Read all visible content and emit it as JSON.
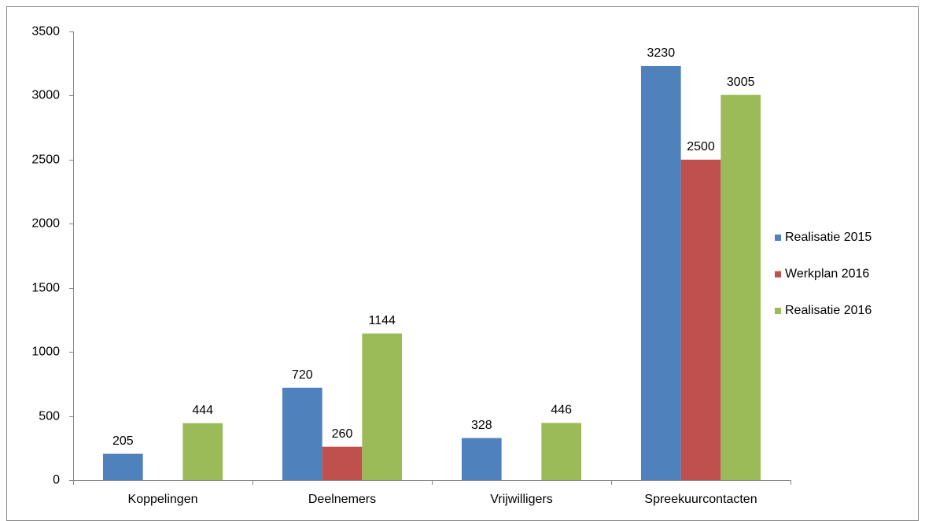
{
  "chart_data": {
    "type": "bar",
    "categories": [
      "Koppelingen",
      "Deelnemers",
      "Vrijwilligers",
      "Spreekuurcontacten"
    ],
    "series": [
      {
        "name": "Realisatie 2015",
        "color": "#4f81bd",
        "values": [
          205,
          720,
          328,
          3230
        ]
      },
      {
        "name": "Werkplan 2016",
        "color": "#c0504d",
        "values": [
          null,
          260,
          null,
          2500
        ]
      },
      {
        "name": "Realisatie 2016",
        "color": "#9bbb59",
        "values": [
          444,
          1144,
          446,
          3005
        ]
      }
    ],
    "ylim": [
      0,
      3500
    ],
    "yticks": [
      0,
      500,
      1000,
      1500,
      2000,
      2500,
      3000,
      3500
    ],
    "grid": false,
    "legend": "right"
  }
}
